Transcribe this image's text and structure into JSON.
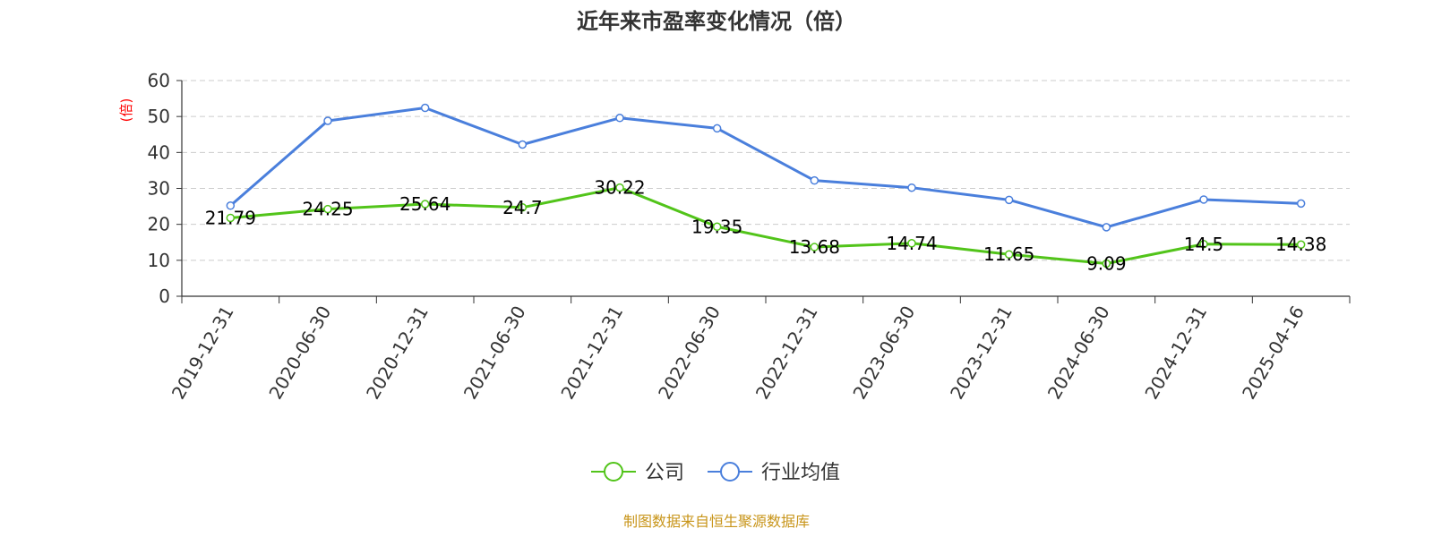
{
  "chart_data": {
    "type": "line",
    "title": "近年来市盈率变化情况（倍）",
    "ylabel": "(倍)",
    "xlabel": "",
    "ylim": [
      0,
      60
    ],
    "yticks": [
      0,
      10,
      20,
      30,
      40,
      50,
      60
    ],
    "grid": true,
    "legend_position": "bottom",
    "categories": [
      "2019-12-31",
      "2020-06-30",
      "2020-12-31",
      "2021-06-30",
      "2021-12-31",
      "2022-06-30",
      "2022-12-31",
      "2023-06-30",
      "2023-12-31",
      "2024-06-30",
      "2024-12-31",
      "2025-04-16"
    ],
    "series": [
      {
        "name": "公司",
        "color": "#52c41a",
        "values": [
          21.79,
          24.25,
          25.64,
          24.7,
          30.22,
          19.35,
          13.68,
          14.74,
          11.65,
          9.09,
          14.5,
          14.38
        ],
        "labels": [
          "21.79",
          "24.25",
          "25.64",
          "24.7",
          "30.22",
          "19.35",
          "13.68",
          "14.74",
          "11.65",
          "9.09",
          "14.5",
          "14.38"
        ],
        "show_labels": true
      },
      {
        "name": "行业均值",
        "color": "#4a7fdc",
        "values": [
          25.2,
          48.8,
          52.4,
          42.2,
          49.6,
          46.7,
          32.2,
          30.2,
          26.8,
          19.2,
          26.9,
          25.8
        ],
        "show_labels": false
      }
    ],
    "source_text": "制图数据来自恒生聚源数据库"
  }
}
